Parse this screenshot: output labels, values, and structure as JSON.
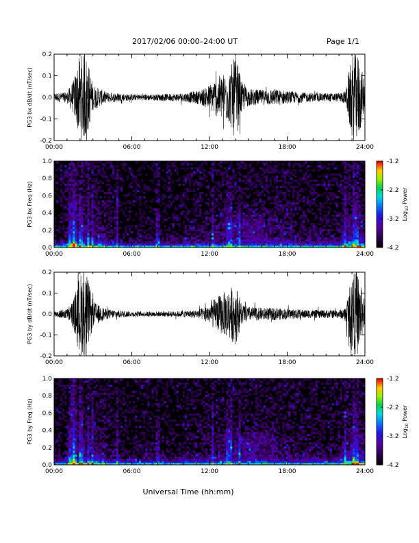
{
  "header": {
    "title": "2017/02/06  00:00–24:00 UT",
    "page": "Page 1/1"
  },
  "xlabel": "Universal Time (hh:mm)",
  "chart_data": [
    {
      "type": "line",
      "ylabel": "PG3 bx dB/dt (nT/sec)",
      "ylim": [
        -0.2,
        0.2
      ],
      "yticks": [
        -0.2,
        -0.1,
        0.0,
        0.1,
        0.2
      ],
      "xlim": [
        0,
        24
      ],
      "xticks": [
        "00:00",
        "06:00",
        "12:00",
        "18:00",
        "24:00"
      ],
      "x_hours": [
        0,
        1,
        1.5,
        2,
        2.5,
        3,
        4,
        6,
        8,
        10,
        11,
        11.5,
        12,
        12.5,
        13,
        13.5,
        14,
        14.5,
        15,
        16,
        17,
        18,
        20,
        22,
        22.5,
        23,
        23.5,
        24
      ],
      "envelope": [
        0.02,
        0.025,
        0.08,
        0.2,
        0.2,
        0.06,
        0.025,
        0.015,
        0.015,
        0.02,
        0.03,
        0.04,
        0.06,
        0.09,
        0.11,
        0.12,
        0.2,
        0.07,
        0.04,
        0.035,
        0.04,
        0.03,
        0.02,
        0.02,
        0.03,
        0.2,
        0.2,
        0.06
      ]
    },
    {
      "type": "heatmap",
      "ylabel": "PG3 bx Freq (Hz)",
      "ylim": [
        0,
        1.0
      ],
      "yticks": [
        0.0,
        0.2,
        0.4,
        0.6,
        0.8,
        1.0
      ],
      "xlim": [
        0,
        24
      ],
      "xticks": [
        "00:00",
        "06:00",
        "12:00",
        "18:00",
        "24:00"
      ],
      "colorbar": {
        "label": "Log10 Power",
        "range": [
          -4.2,
          -1.2
        ],
        "ticks": [
          -1.2,
          -2.2,
          -3.2,
          -4.2
        ]
      }
    },
    {
      "type": "line",
      "ylabel": "PG3 by dB/dt (nT/sec)",
      "ylim": [
        -0.2,
        0.2
      ],
      "yticks": [
        -0.2,
        -0.1,
        0.0,
        0.1,
        0.2
      ],
      "xlim": [
        0,
        24
      ],
      "xticks": [
        "00:00",
        "06:00",
        "12:00",
        "18:00",
        "24:00"
      ],
      "x_hours": [
        0,
        1,
        1.5,
        2,
        2.5,
        3,
        4,
        6,
        8,
        10,
        11,
        11.5,
        12,
        12.5,
        13,
        13.5,
        14,
        14.5,
        15,
        16,
        17,
        18,
        20,
        22,
        22.5,
        23,
        23.5,
        24
      ],
      "envelope": [
        0.015,
        0.025,
        0.07,
        0.2,
        0.2,
        0.06,
        0.025,
        0.012,
        0.012,
        0.015,
        0.02,
        0.03,
        0.05,
        0.08,
        0.1,
        0.12,
        0.15,
        0.05,
        0.035,
        0.03,
        0.03,
        0.025,
        0.02,
        0.02,
        0.03,
        0.2,
        0.2,
        0.05
      ]
    },
    {
      "type": "heatmap",
      "ylabel": "PG3 by Freq (Hz)",
      "ylim": [
        0,
        1.0
      ],
      "yticks": [
        0.0,
        0.2,
        0.4,
        0.6,
        0.8,
        1.0
      ],
      "xlim": [
        0,
        24
      ],
      "xticks": [
        "00:00",
        "06:00",
        "12:00",
        "18:00",
        "24:00"
      ],
      "colorbar": {
        "label": "Log10 Power",
        "range": [
          -4.2,
          -1.2
        ],
        "ticks": [
          -1.2,
          -2.2,
          -3.2,
          -4.2
        ]
      }
    }
  ]
}
